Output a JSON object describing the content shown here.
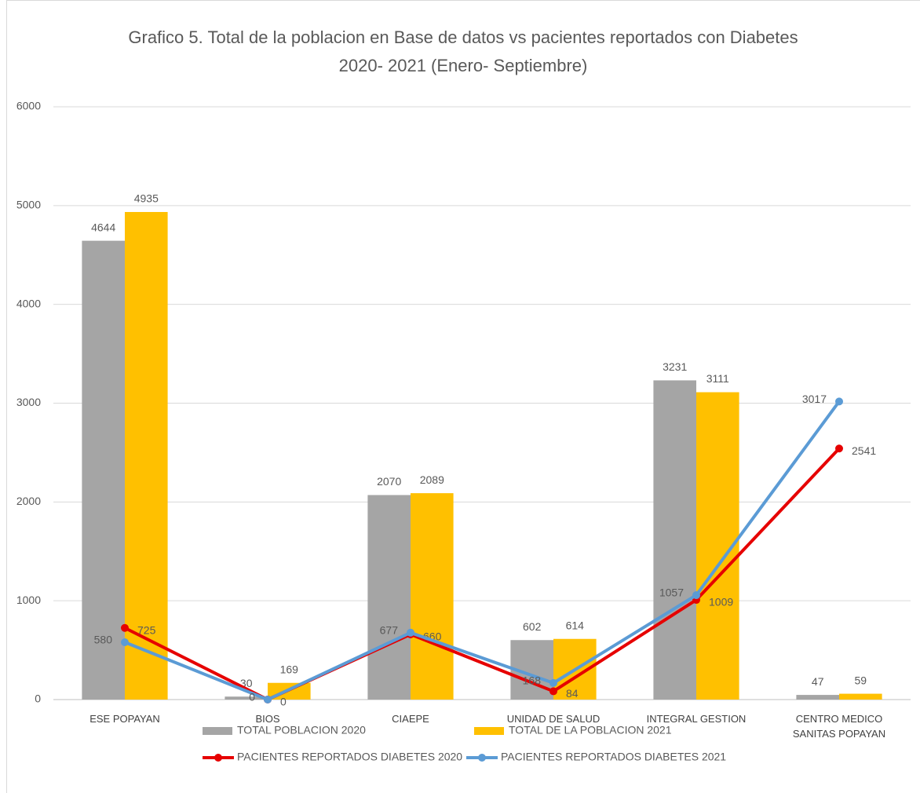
{
  "chart_data": {
    "type": "bar",
    "title": "Grafico 5. Total de la poblacion en Base de datos vs  pacientes reportados con Diabetes 2020- 2021 (Enero- Septiembre)",
    "categories": [
      "ESE POPAYAN",
      "BIOS",
      "CIAEPE",
      "UNIDAD DE SALUD",
      "INTEGRAL GESTION",
      "CENTRO MEDICO SANITAS POPAYAN"
    ],
    "series": [
      {
        "name": "TOTAL POBLACION 2020",
        "type": "bar",
        "color": "#a5a5a5",
        "values": [
          4644,
          30,
          2070,
          602,
          3231,
          47
        ]
      },
      {
        "name": "TOTAL DE LA POBLACION 2021",
        "type": "bar",
        "color": "#ffc000",
        "values": [
          4935,
          169,
          2089,
          614,
          3111,
          59
        ]
      },
      {
        "name": "PACIENTES REPORTADOS DIABETES 2020",
        "type": "line",
        "color": "#e60000",
        "values": [
          725,
          0,
          660,
          84,
          1009,
          2541
        ]
      },
      {
        "name": "PACIENTES REPORTADOS DIABETES 2021",
        "type": "line",
        "color": "#5b9bd5",
        "values": [
          580,
          0,
          677,
          168,
          1057,
          3017
        ]
      }
    ],
    "ylim": [
      0,
      6000
    ],
    "yticks": [
      0,
      1000,
      2000,
      3000,
      4000,
      5000,
      6000
    ],
    "grid": true,
    "legend": "bottom"
  }
}
